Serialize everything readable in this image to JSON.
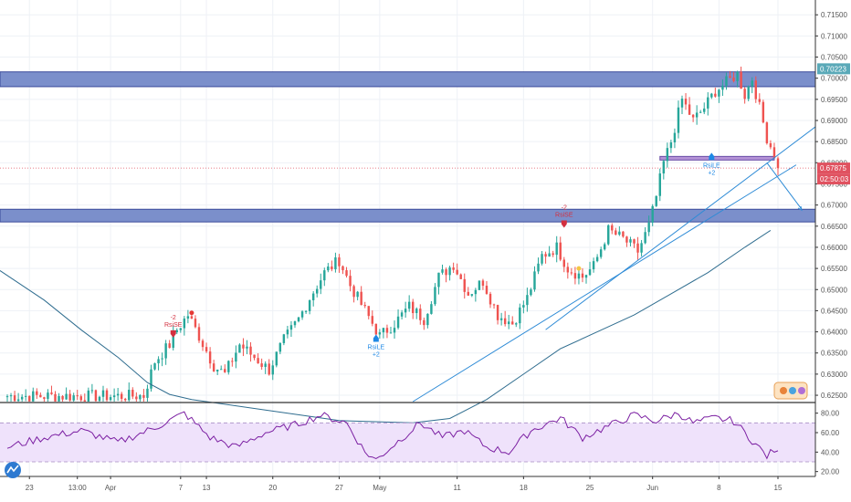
{
  "chart_data": {
    "type": "candlestick",
    "price_axis": {
      "ticks": [
        "0.71500",
        "0.71000",
        "0.70500",
        "0.70000",
        "0.69500",
        "0.69000",
        "0.68500",
        "0.68000",
        "0.67500",
        "0.67000",
        "0.66500",
        "0.66000",
        "0.65500",
        "0.65000",
        "0.64500",
        "0.64000",
        "0.63500",
        "0.63000",
        "0.62500"
      ],
      "ylim": [
        0.6235,
        0.7185
      ]
    },
    "time_axis": {
      "labels": [
        "23",
        "13:00",
        "Apr",
        "7",
        "13",
        "20",
        "27",
        "May",
        "11",
        "18",
        "25",
        "Jun",
        "8",
        "15"
      ]
    },
    "price_tags": [
      {
        "value": 0.70223,
        "label": "0.70223",
        "color": "#5aa9b8"
      },
      {
        "value": 0.67875,
        "label": "0.67875",
        "color": "#e05260"
      },
      {
        "value": 0.67875,
        "label": "02:50:03",
        "color": "#e05260"
      }
    ],
    "zones": [
      {
        "from": 0.698,
        "to": 0.7015,
        "color": "#7b8fcb"
      },
      {
        "from": 0.666,
        "to": 0.669,
        "color": "#7b8fcb"
      }
    ],
    "current_price": 0.67875,
    "signals": [
      {
        "type": "sell",
        "lines": [
          "-2",
          "RsiSE"
        ],
        "index": 45,
        "price": 0.6395
      },
      {
        "type": "buy",
        "lines": [
          "RsiLE",
          "+2"
        ],
        "index": 100,
        "price": 0.6385
      },
      {
        "type": "sell",
        "lines": [
          "-2",
          "RsiSE"
        ],
        "index": 151,
        "price": 0.6655
      },
      {
        "type": "buy",
        "lines": [
          "RsiLE",
          "+2"
        ],
        "index": 191,
        "price": 0.6815
      }
    ],
    "ohlc": [],
    "rsi": {
      "ticks": [
        "80.00",
        "60.00",
        "40.00",
        "20.00"
      ],
      "ylim": [
        15,
        90
      ],
      "band": [
        30,
        70
      ],
      "values": []
    }
  }
}
